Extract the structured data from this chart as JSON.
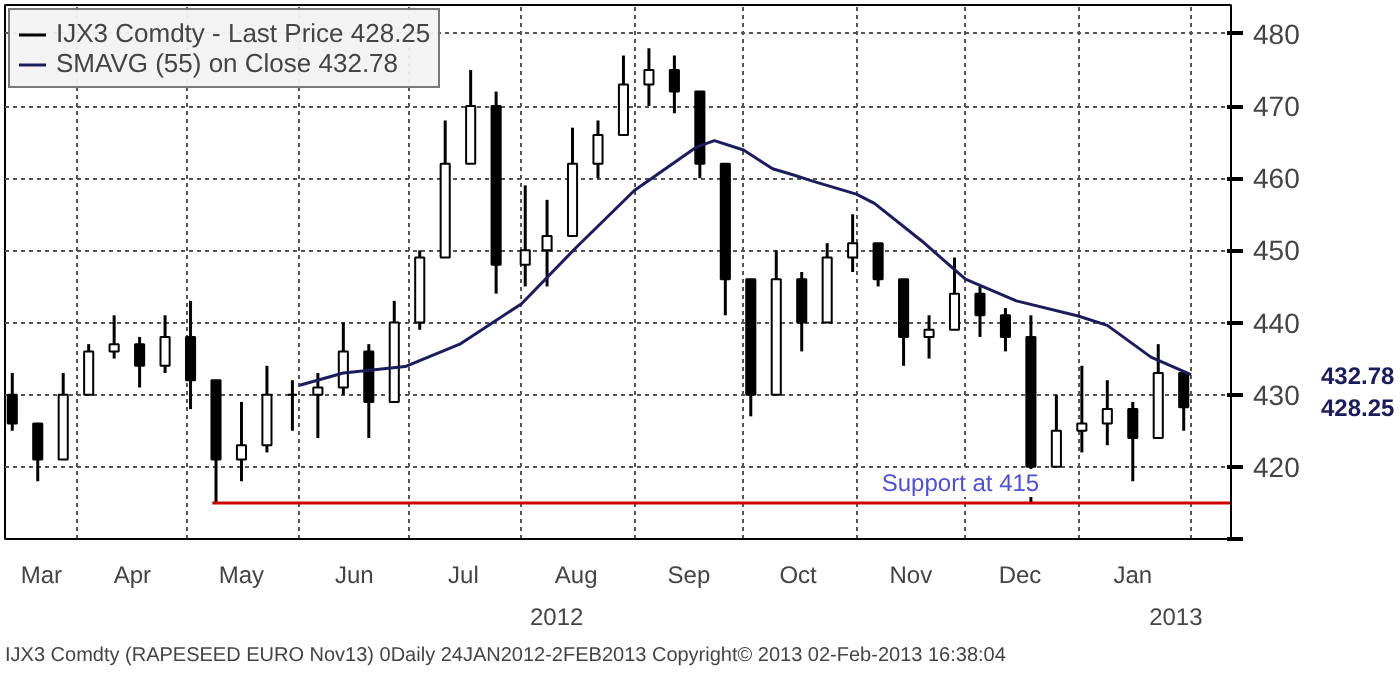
{
  "chart_data": {
    "type": "candlestick",
    "xlim": [
      "2012-03-12",
      "2013-02-12"
    ],
    "xticks": [
      {
        "value": "2012-04-01",
        "label": null
      },
      {
        "value": "2012-05-01",
        "label": null
      },
      {
        "value": "2012-06-01",
        "label": null
      },
      {
        "value": "2012-07-01",
        "label": null
      },
      {
        "value": "2012-08-01",
        "label": null
      },
      {
        "value": "2012-09-01",
        "label": null
      },
      {
        "value": "2012-10-01",
        "label": null
      },
      {
        "value": "2012-11-01",
        "label": null
      },
      {
        "value": "2012-12-01",
        "label": null
      },
      {
        "value": "2013-01-01",
        "label": null
      },
      {
        "value": "2013-02-01",
        "label": null
      },
      {
        "value": "2012-03-22",
        "label": "Mar"
      },
      {
        "value": "2012-04-16",
        "label": "Apr"
      },
      {
        "value": "2012-05-16",
        "label": "May"
      },
      {
        "value": "2012-06-16",
        "label": "Jun"
      },
      {
        "value": "2012-07-16",
        "label": "Jul"
      },
      {
        "value": "2012-08-16",
        "label": "Aug"
      },
      {
        "value": "2012-09-16",
        "label": "Sep"
      },
      {
        "value": "2012-10-16",
        "label": "Oct"
      },
      {
        "value": "2012-11-16",
        "label": "Nov"
      },
      {
        "value": "2012-12-16",
        "label": "Dec"
      },
      {
        "value": "2013-01-16",
        "label": "Jan"
      }
    ],
    "ylim": [
      410,
      484
    ],
    "yticks": [
      {
        "value": 410,
        "label": null
      },
      420,
      430,
      440,
      450,
      460,
      470,
      480
    ],
    "y2lim": [
      410,
      484
    ],
    "y2ticks": [
      432.78,
      428.25
    ],
    "grid": true,
    "legend": "top left",
    "series": [
      {
        "name": "IJX3 Comdty - Last Price 428.25",
        "color": "#000000",
        "x": [
          "2012-03-14",
          "2012-03-21",
          "2012-03-28",
          "2012-04-04",
          "2012-04-11",
          "2012-04-18",
          "2012-04-25",
          "2012-05-02",
          "2012-05-09",
          "2012-05-16",
          "2012-05-23",
          "2012-05-30",
          "2012-06-06",
          "2012-06-13",
          "2012-06-20",
          "2012-06-27",
          "2012-07-04",
          "2012-07-11",
          "2012-07-18",
          "2012-07-25",
          "2012-08-02",
          "2012-08-08",
          "2012-08-15",
          "2012-08-22",
          "2012-08-29",
          "2012-09-05",
          "2012-09-12",
          "2012-09-19",
          "2012-09-26",
          "2012-10-03",
          "2012-10-10",
          "2012-10-17",
          "2012-10-24",
          "2012-10-31",
          "2012-11-07",
          "2012-11-14",
          "2012-11-21",
          "2012-11-28",
          "2012-12-05",
          "2012-12-12",
          "2012-12-19",
          "2012-12-26",
          "2013-01-02",
          "2013-01-09",
          "2013-01-16",
          "2013-01-23",
          "2013-01-30"
        ],
        "ohlc": [
          [
            430,
            433,
            425,
            426
          ],
          [
            426,
            426,
            418,
            421
          ],
          [
            421,
            433,
            421,
            430
          ],
          [
            430,
            437,
            430,
            436
          ],
          [
            436,
            441,
            435,
            437
          ],
          [
            437,
            438,
            431,
            434
          ],
          [
            434,
            441,
            433,
            438
          ],
          [
            438,
            443,
            428,
            432
          ],
          [
            432,
            432,
            415,
            421
          ],
          [
            421,
            429,
            418,
            423
          ],
          [
            423,
            434,
            422,
            430
          ],
          [
            430,
            432,
            425,
            430
          ],
          [
            430,
            433,
            424,
            431
          ],
          [
            431,
            440,
            430,
            436
          ],
          [
            436,
            437,
            424,
            429
          ],
          [
            429,
            443,
            429,
            440
          ],
          [
            440,
            450,
            439,
            449
          ],
          [
            449,
            468,
            449,
            462
          ],
          [
            462,
            475,
            462,
            470
          ],
          [
            470,
            472,
            444,
            448
          ],
          [
            448,
            459,
            445,
            450
          ],
          [
            450,
            457,
            445,
            452
          ],
          [
            452,
            467,
            452,
            462
          ],
          [
            462,
            468,
            460,
            466
          ],
          [
            466,
            477,
            466,
            473
          ],
          [
            473,
            478,
            470,
            475
          ],
          [
            475,
            477,
            469,
            472
          ],
          [
            472,
            472,
            460,
            462
          ],
          [
            462,
            462,
            441,
            446
          ],
          [
            446,
            446,
            427,
            430
          ],
          [
            430,
            450,
            430,
            446
          ],
          [
            446,
            447,
            436,
            440
          ],
          [
            440,
            451,
            440,
            449
          ],
          [
            449,
            455,
            447,
            451
          ],
          [
            451,
            451,
            445,
            446
          ],
          [
            446,
            446,
            434,
            438
          ],
          [
            438,
            441,
            435,
            439
          ],
          [
            439,
            449,
            439,
            444
          ],
          [
            444,
            445,
            438,
            441
          ],
          [
            441,
            442,
            436,
            438
          ],
          [
            438,
            441,
            415,
            420
          ],
          [
            420,
            430,
            420,
            425
          ],
          [
            425,
            434,
            422,
            426
          ],
          [
            426,
            432,
            423,
            428
          ],
          [
            428,
            429,
            418,
            424
          ],
          [
            424,
            437,
            424,
            433
          ],
          [
            433,
            433,
            425,
            428.25
          ]
        ]
      },
      {
        "name": "SMAVG (55) on Close 432.78",
        "type": "line",
        "color": "#1c1c5c",
        "x": [
          "2012-06-01",
          "2012-06-13",
          "2012-06-30",
          "2012-07-15",
          "2012-08-01",
          "2012-08-16",
          "2012-09-01",
          "2012-09-18",
          "2012-09-23",
          "2012-10-01",
          "2012-10-09",
          "2012-10-15",
          "2012-10-20",
          "2012-11-01",
          "2012-11-06",
          "2012-11-19",
          "2012-12-01",
          "2012-12-15",
          "2013-01-01",
          "2013-01-09",
          "2013-01-21",
          "2013-02-01"
        ],
        "values": [
          431.3,
          433,
          433.9,
          437,
          442.6,
          450.4,
          458.3,
          464.3,
          465.2,
          463.9,
          461.3,
          460.4,
          459.6,
          457.8,
          456.5,
          451.3,
          446,
          443,
          440.9,
          439.6,
          435.2,
          432.78
        ]
      },
      {
        "type": "line",
        "color": "#cc0000",
        "x": [
          "2012-05-08",
          "2013-02-12"
        ],
        "values": [
          415,
          415
        ]
      }
    ],
    "annotations": [
      {
        "text": "Support at 415",
        "x": "2012-11-08",
        "y": 415
      },
      "2012",
      "2013",
      "IJX3 Comdty (RAPESEED  EURO    Nov13) 0Daily 24JAN2012-2FEB2013 Copyright© 2013  02-Feb-2013 16:38:04"
    ]
  }
}
